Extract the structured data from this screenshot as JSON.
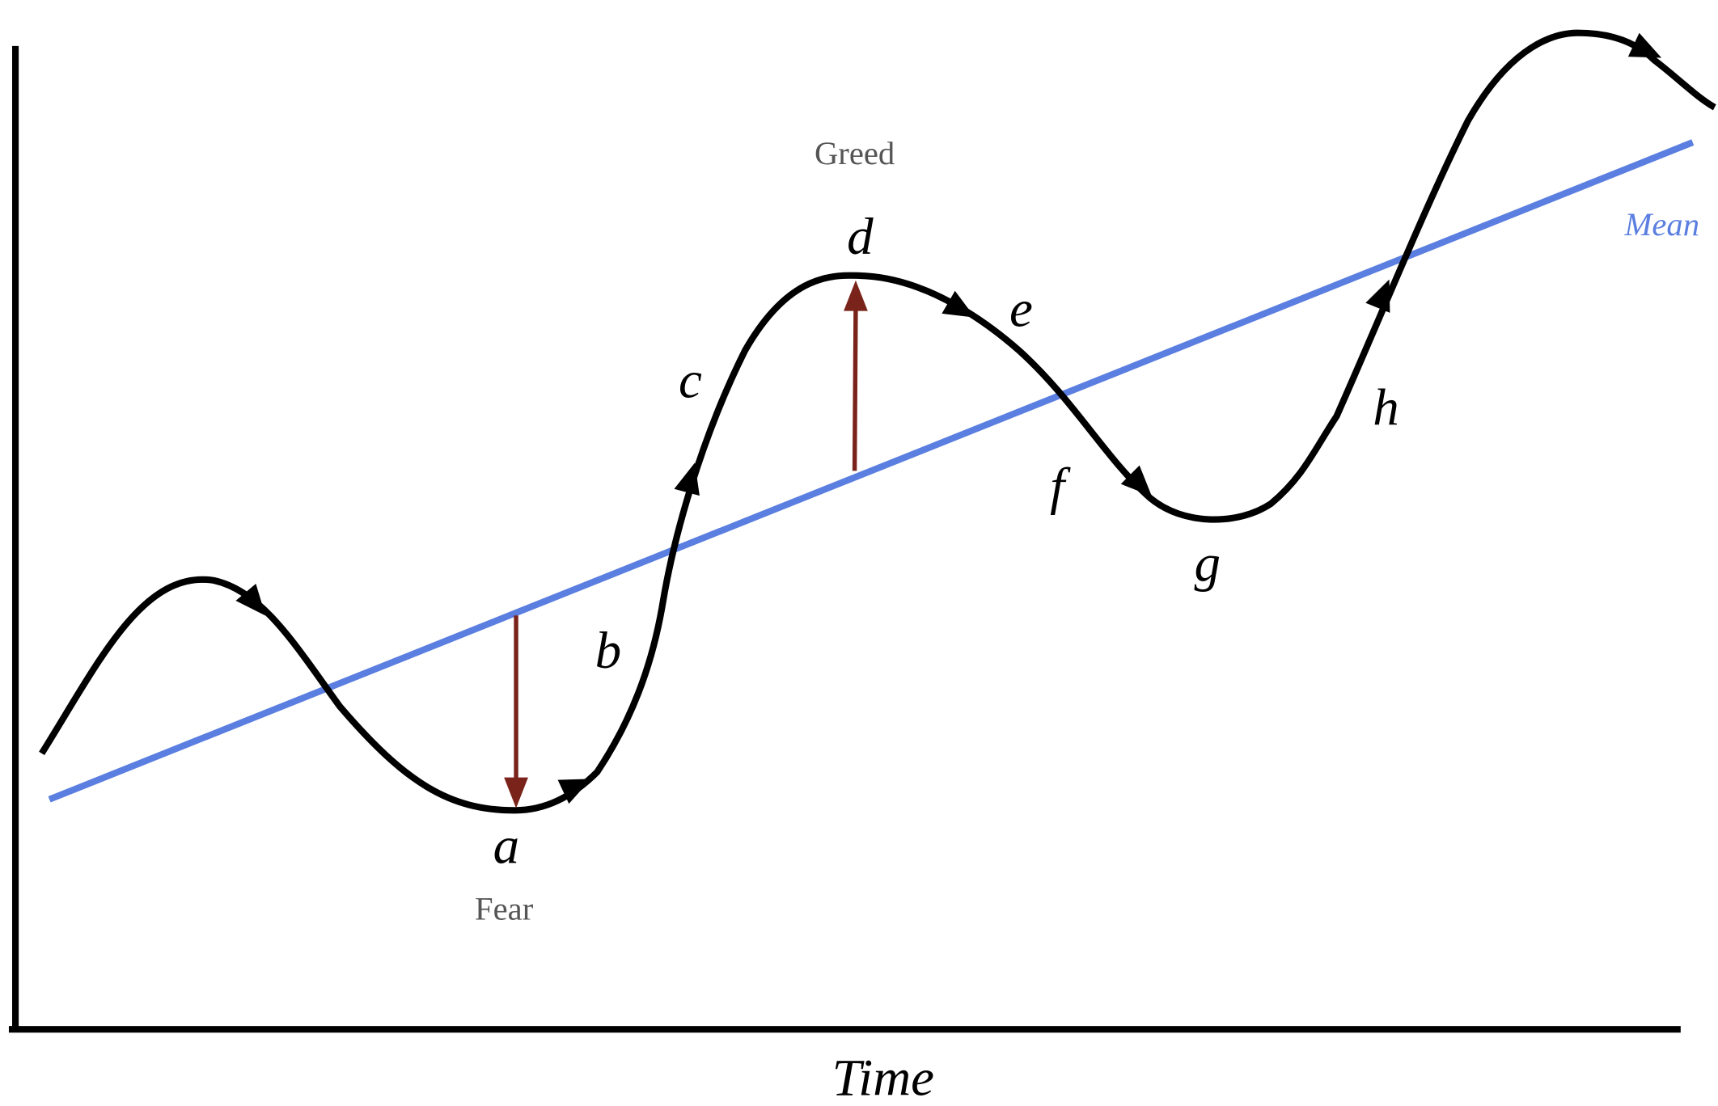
{
  "points": [
    "a",
    "b",
    "c",
    "d",
    "e",
    "f",
    "g",
    "h"
  ],
  "greed": "Greed",
  "fear": "Fear",
  "mean": "Mean",
  "x_axis": "Time"
}
